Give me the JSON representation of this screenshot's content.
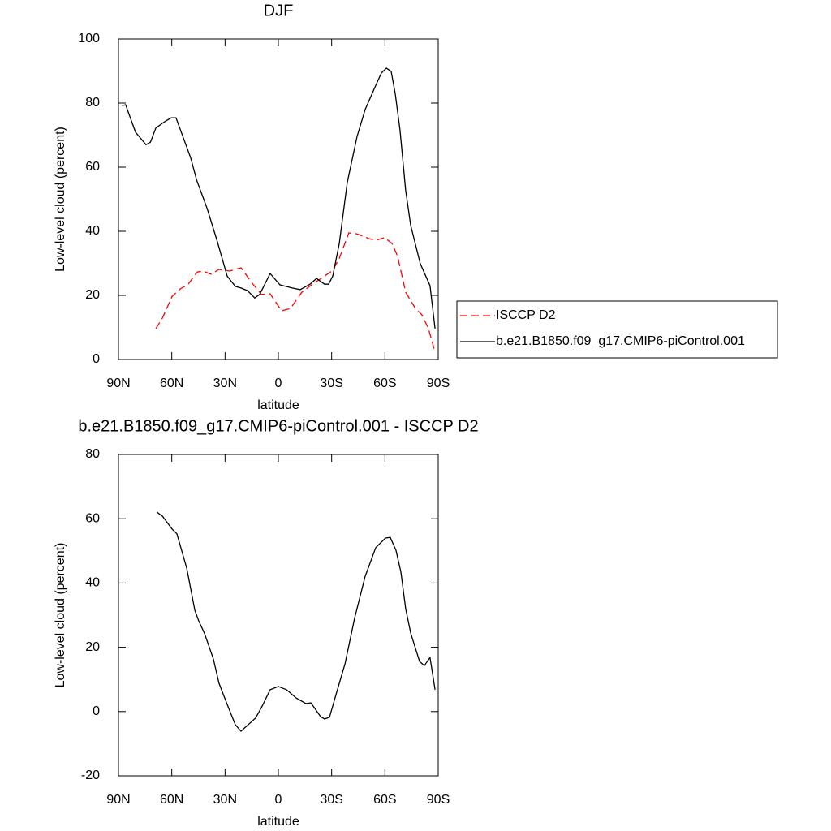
{
  "chart_data": [
    {
      "type": "line",
      "title": "DJF",
      "x_label": "latitude",
      "y_label": "Low-level cloud (percent)",
      "xlim": [
        90,
        -90
      ],
      "xticks": [
        {
          "value": 90,
          "label": "90N"
        },
        {
          "value": 60,
          "label": "60N"
        },
        {
          "value": 30,
          "label": "30N"
        },
        0,
        {
          "value": -30,
          "label": "30S"
        },
        {
          "value": -60,
          "label": "60S"
        },
        {
          "value": -90,
          "label": "90S"
        }
      ],
      "ylim": [
        0,
        100
      ],
      "yticks": [
        0,
        20,
        40,
        60,
        80,
        100
      ],
      "legend": "right",
      "series": [
        {
          "name": "ISCCP D2",
          "color": "#ff0000",
          "dashed": true,
          "x": [
            69,
            65.3,
            59.8,
            55.3,
            50.7,
            45.7,
            42.5,
            37.9,
            33.4,
            27.4,
            21,
            15.1,
            9.6,
            4.6,
            -1.8,
            -6.8,
            -13.2,
            -19.2,
            -26,
            -30.6,
            -34.3,
            -39.7,
            -44.3,
            -51.1,
            -54.8,
            -59.8,
            -64,
            -67.1,
            -71.7,
            -77.2,
            -80.9,
            -84.5,
            -87.7
          ],
          "values": [
            9.6,
            12.9,
            19.7,
            22,
            23.5,
            27.3,
            27.6,
            26.6,
            28.1,
            27.6,
            28.6,
            24.1,
            20.3,
            20.5,
            15.2,
            15.9,
            21,
            23.5,
            26,
            27.8,
            31.6,
            39.5,
            39.2,
            37.7,
            37.2,
            38,
            36.2,
            32.2,
            21,
            15.9,
            13.9,
            9.6,
            3.3
          ]
        },
        {
          "name": "b.e21.B1850.f09_g17.CMIP6-piControl.001",
          "color": "#000000",
          "dashed": false,
          "x": [
            88,
            86,
            80.4,
            74.5,
            72,
            69,
            64,
            60.3,
            57.6,
            49.3,
            46,
            40,
            34.3,
            28.8,
            24.2,
            21,
            17.4,
            13.3,
            10.5,
            4.6,
            -0.9,
            -7.8,
            -12.3,
            -17.8,
            -21.5,
            -26,
            -28.3,
            -30.6,
            -34.3,
            -38.8,
            -44.3,
            -48.9,
            -54.4,
            -58,
            -60.8,
            -63.5,
            -65.8,
            -68.5,
            -71.7,
            -74.5,
            -79.9,
            -85.4,
            -88.2
          ],
          "values": [
            79.2,
            79.5,
            70.9,
            67,
            67.8,
            72.2,
            74.2,
            75.4,
            75.4,
            62.8,
            56,
            47,
            36.7,
            26,
            22.8,
            22.3,
            21.5,
            19.2,
            20.3,
            26.8,
            23.3,
            22.3,
            21.8,
            23.5,
            25.3,
            23.5,
            23.5,
            26,
            36.2,
            55.2,
            69.6,
            78,
            85,
            89.4,
            90.9,
            89.9,
            83,
            71.6,
            52.7,
            41.8,
            29.9,
            23,
            9.6
          ]
        }
      ]
    },
    {
      "type": "line",
      "title": "b.e21.B1850.f09_g17.CMIP6-piControl.001 - ISCCP D2",
      "x_label": "latitude",
      "y_label": "Low-level cloud (percent)",
      "xlim": [
        90,
        -90
      ],
      "xticks": [
        {
          "value": 90,
          "label": "90N"
        },
        {
          "value": 60,
          "label": "60N"
        },
        {
          "value": 30,
          "label": "30N"
        },
        0,
        {
          "value": -30,
          "label": "30S"
        },
        {
          "value": -60,
          "label": "60S"
        },
        {
          "value": -90,
          "label": "90S"
        }
      ],
      "ylim": [
        -20,
        80
      ],
      "yticks": [
        -20,
        0,
        20,
        40,
        60,
        80
      ],
      "series": [
        {
          "color": "#000000",
          "dashed": false,
          "x": [
            68.5,
            65.3,
            59.8,
            57.1,
            51.6,
            47,
            44.8,
            41.6,
            36.6,
            33.4,
            28.8,
            24.2,
            21,
            12.8,
            9.1,
            4.6,
            0,
            -4.6,
            -10.1,
            -15.5,
            -18.3,
            -23.8,
            -26,
            -28.8,
            -32.9,
            -37.5,
            -42.9,
            -48.9,
            -54.8,
            -60.3,
            -63,
            -66.2,
            -69,
            -71.7,
            -74.5,
            -79.5,
            -82.2,
            -85.4,
            -88.2
          ],
          "values": [
            62.1,
            60.8,
            56.8,
            55.3,
            44.6,
            31.5,
            28.2,
            24.4,
            16.4,
            8.8,
            2.2,
            -4.1,
            -6.1,
            -2,
            1.7,
            6.8,
            7.8,
            6.8,
            4.2,
            2.5,
            2.7,
            -1.6,
            -2.3,
            -1.8,
            6.1,
            14.8,
            29,
            42.1,
            51,
            54,
            54.2,
            50.2,
            43.4,
            32,
            24.4,
            15.6,
            14.3,
            16.8,
            6.8
          ]
        }
      ]
    }
  ]
}
